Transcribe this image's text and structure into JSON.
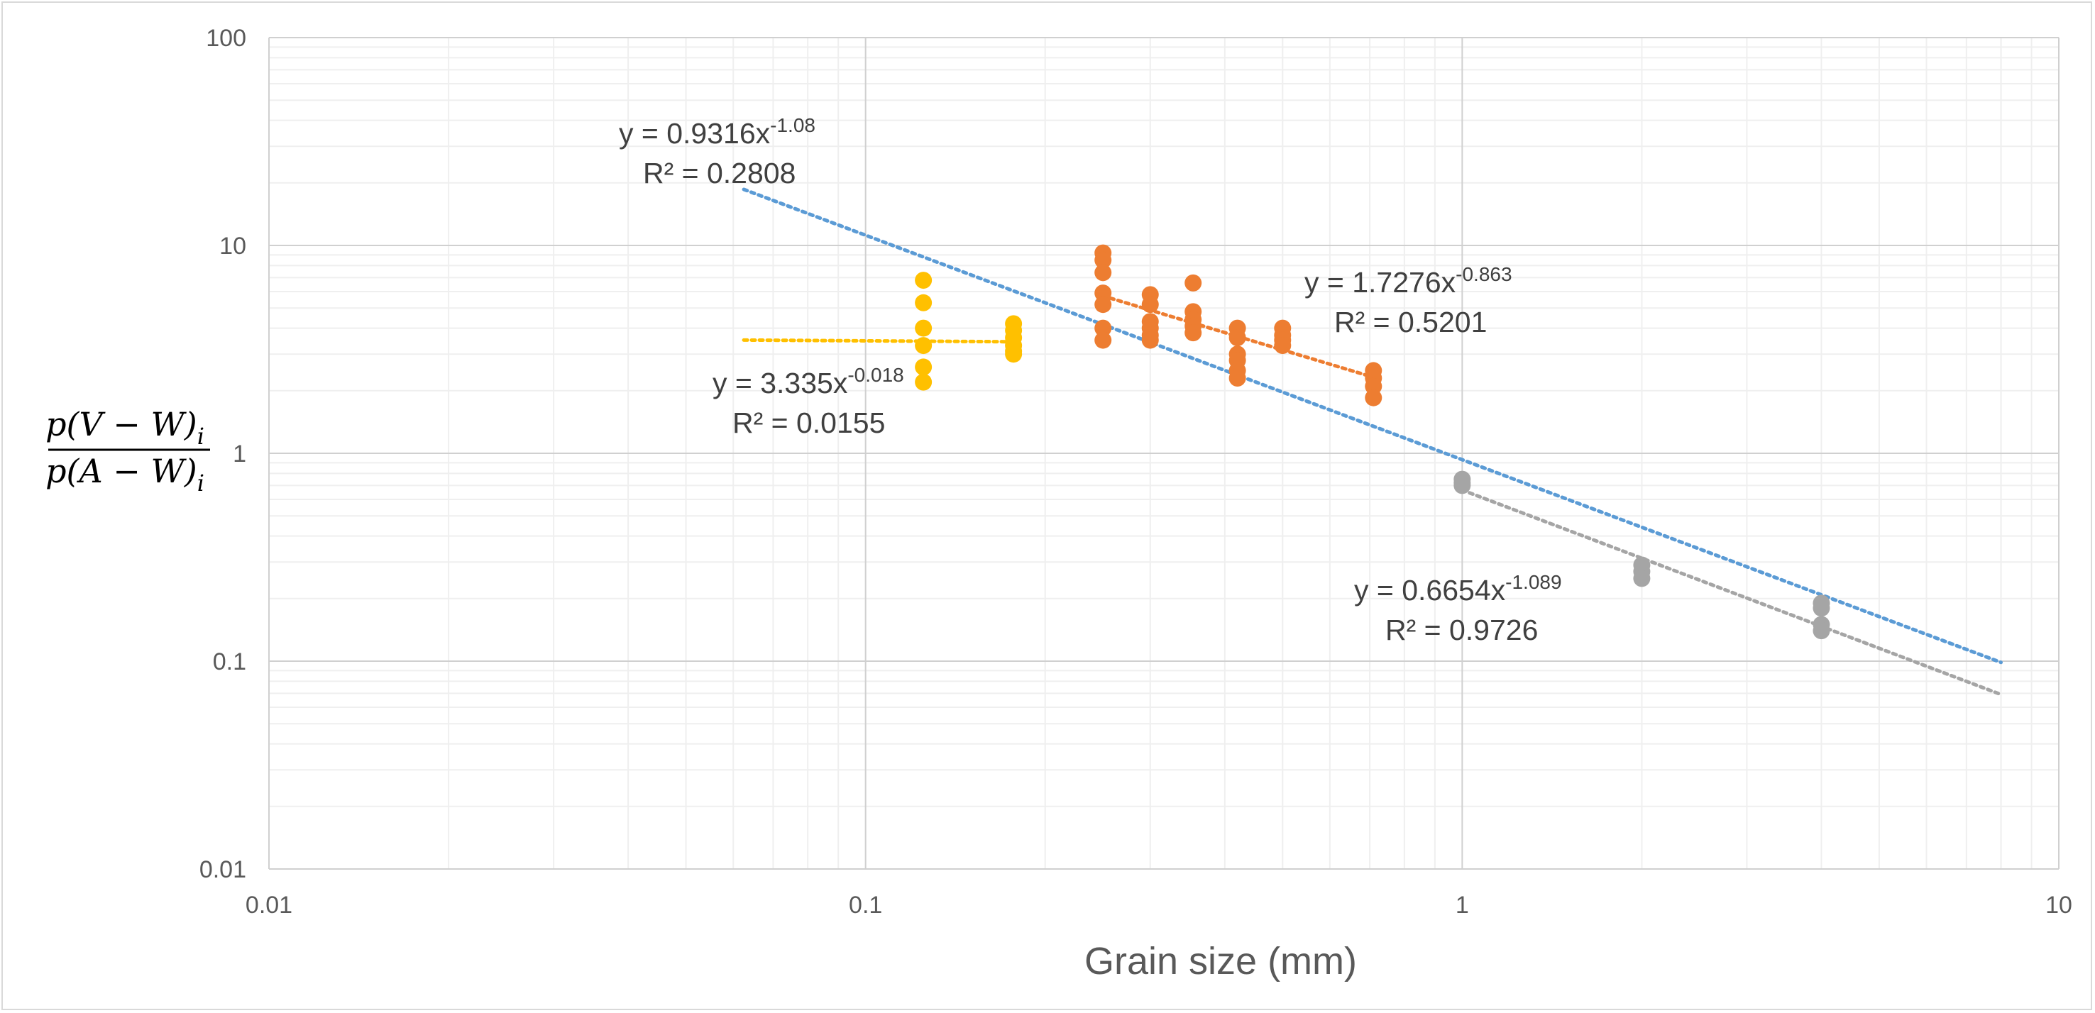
{
  "chart_data": {
    "type": "scatter",
    "xlabel": "Grain size (mm)",
    "ylabel": {
      "numerator": "p(V − W)",
      "denominator": "p(A − W)",
      "subscript": "i"
    },
    "x_scale": "log",
    "y_scale": "log",
    "xlim": [
      0.01,
      10
    ],
    "ylim": [
      0.01,
      100
    ],
    "x_ticks": [
      "0.01",
      "0.1",
      "1",
      "10"
    ],
    "y_ticks": [
      "0.01",
      "0.1",
      "1",
      "10",
      "100"
    ],
    "grid": true,
    "legend": "none",
    "series": [
      {
        "color": "#FFC000",
        "points": [
          [
            0.125,
            6.8
          ],
          [
            0.125,
            5.3
          ],
          [
            0.125,
            4.0
          ],
          [
            0.125,
            3.3
          ],
          [
            0.125,
            2.6
          ],
          [
            0.125,
            2.2
          ],
          [
            0.177,
            4.2
          ],
          [
            0.177,
            3.9
          ],
          [
            0.177,
            3.6
          ],
          [
            0.177,
            3.3
          ],
          [
            0.177,
            3.1
          ],
          [
            0.177,
            3.0
          ]
        ],
        "trendline": {
          "x_range": [
            0.0625,
            0.177
          ],
          "coef": 3.335,
          "exp": -0.018,
          "equation_prefix": "y = 3.335x",
          "equation_exp": "-0.018",
          "r2": "R² = 0.0155"
        }
      },
      {
        "color": "#ED7D31",
        "points": [
          [
            0.25,
            9.2
          ],
          [
            0.25,
            8.5
          ],
          [
            0.25,
            7.4
          ],
          [
            0.25,
            5.9
          ],
          [
            0.25,
            5.2
          ],
          [
            0.25,
            4.0
          ],
          [
            0.25,
            3.5
          ],
          [
            0.3,
            5.8
          ],
          [
            0.3,
            5.2
          ],
          [
            0.3,
            4.3
          ],
          [
            0.3,
            4.0
          ],
          [
            0.3,
            3.7
          ],
          [
            0.3,
            3.5
          ],
          [
            0.354,
            6.6
          ],
          [
            0.354,
            4.8
          ],
          [
            0.354,
            4.4
          ],
          [
            0.354,
            4.1
          ],
          [
            0.354,
            3.8
          ],
          [
            0.42,
            4.0
          ],
          [
            0.42,
            3.6
          ],
          [
            0.42,
            3.0
          ],
          [
            0.42,
            2.8
          ],
          [
            0.42,
            2.5
          ],
          [
            0.42,
            2.3
          ],
          [
            0.5,
            4.0
          ],
          [
            0.5,
            3.7
          ],
          [
            0.5,
            3.5
          ],
          [
            0.5,
            3.3
          ],
          [
            0.71,
            2.5
          ],
          [
            0.71,
            2.3
          ],
          [
            0.71,
            2.1
          ],
          [
            0.71,
            1.85
          ]
        ],
        "trendline": {
          "x_range": [
            0.25,
            0.71
          ],
          "coef": 1.7276,
          "exp": -0.863,
          "equation_prefix": "y = 1.7276x",
          "equation_exp": "-0.863",
          "r2": "R² = 0.5201"
        }
      },
      {
        "color": "#A5A5A5",
        "points": [
          [
            1.0,
            0.75
          ],
          [
            1.0,
            0.72
          ],
          [
            1.0,
            0.7
          ],
          [
            2.0,
            0.29
          ],
          [
            2.0,
            0.27
          ],
          [
            2.0,
            0.25
          ],
          [
            4.0,
            0.19
          ],
          [
            4.0,
            0.18
          ],
          [
            4.0,
            0.15
          ],
          [
            4.0,
            0.14
          ]
        ],
        "trendline": {
          "x_range": [
            1.0,
            8.0
          ],
          "coef": 0.6654,
          "exp": -1.089,
          "equation_prefix": "y = 0.6654x",
          "equation_exp": "-1.089",
          "r2": "R² = 0.9726"
        }
      },
      {
        "color": "#5B9BD5",
        "points": [],
        "trendline": {
          "x_range": [
            0.0625,
            8.0
          ],
          "coef": 0.9316,
          "exp": -1.08,
          "equation_prefix": "y = 0.9316x",
          "equation_exp": "-1.08",
          "r2": "R² = 0.2808"
        }
      }
    ]
  }
}
